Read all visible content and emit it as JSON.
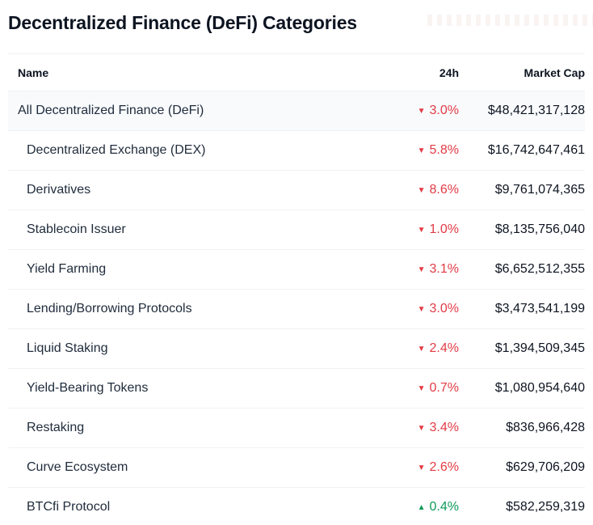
{
  "page": {
    "title": "Decentralized Finance (DeFi) Categories"
  },
  "icons": {
    "down": "▼",
    "up": "▲"
  },
  "colors": {
    "down_red": "#e23b45",
    "up_green": "#0d9a57",
    "row_highlight": "#f8fafc",
    "separator": "#eff2f5",
    "text_primary": "#0d1421",
    "text_name": "#212d3d"
  },
  "table": {
    "columns": {
      "name": "Name",
      "change_24h": "24h",
      "market_cap": "Market Cap"
    },
    "rows": [
      {
        "name": "All Decentralized Finance (DeFi)",
        "change": "3.0%",
        "direction": "down",
        "market_cap": "$48,421,317,128",
        "indent": false,
        "highlighted": true
      },
      {
        "name": "Decentralized Exchange (DEX)",
        "change": "5.8%",
        "direction": "down",
        "market_cap": "$16,742,647,461",
        "indent": true,
        "highlighted": false
      },
      {
        "name": "Derivatives",
        "change": "8.6%",
        "direction": "down",
        "market_cap": "$9,761,074,365",
        "indent": true,
        "highlighted": false
      },
      {
        "name": "Stablecoin Issuer",
        "change": "1.0%",
        "direction": "down",
        "market_cap": "$8,135,756,040",
        "indent": true,
        "highlighted": false
      },
      {
        "name": "Yield Farming",
        "change": "3.1%",
        "direction": "down",
        "market_cap": "$6,652,512,355",
        "indent": true,
        "highlighted": false
      },
      {
        "name": "Lending/Borrowing Protocols",
        "change": "3.0%",
        "direction": "down",
        "market_cap": "$3,473,541,199",
        "indent": true,
        "highlighted": false
      },
      {
        "name": "Liquid Staking",
        "change": "2.4%",
        "direction": "down",
        "market_cap": "$1,394,509,345",
        "indent": true,
        "highlighted": false
      },
      {
        "name": "Yield-Bearing Tokens",
        "change": "0.7%",
        "direction": "down",
        "market_cap": "$1,080,954,640",
        "indent": true,
        "highlighted": false
      },
      {
        "name": "Restaking",
        "change": "3.4%",
        "direction": "down",
        "market_cap": "$836,966,428",
        "indent": true,
        "highlighted": false
      },
      {
        "name": "Curve Ecosystem",
        "change": "2.6%",
        "direction": "down",
        "market_cap": "$629,706,209",
        "indent": true,
        "highlighted": false
      },
      {
        "name": "BTCfi Protocol",
        "change": "0.4%",
        "direction": "up",
        "market_cap": "$582,259,319",
        "indent": true,
        "highlighted": false
      }
    ]
  }
}
